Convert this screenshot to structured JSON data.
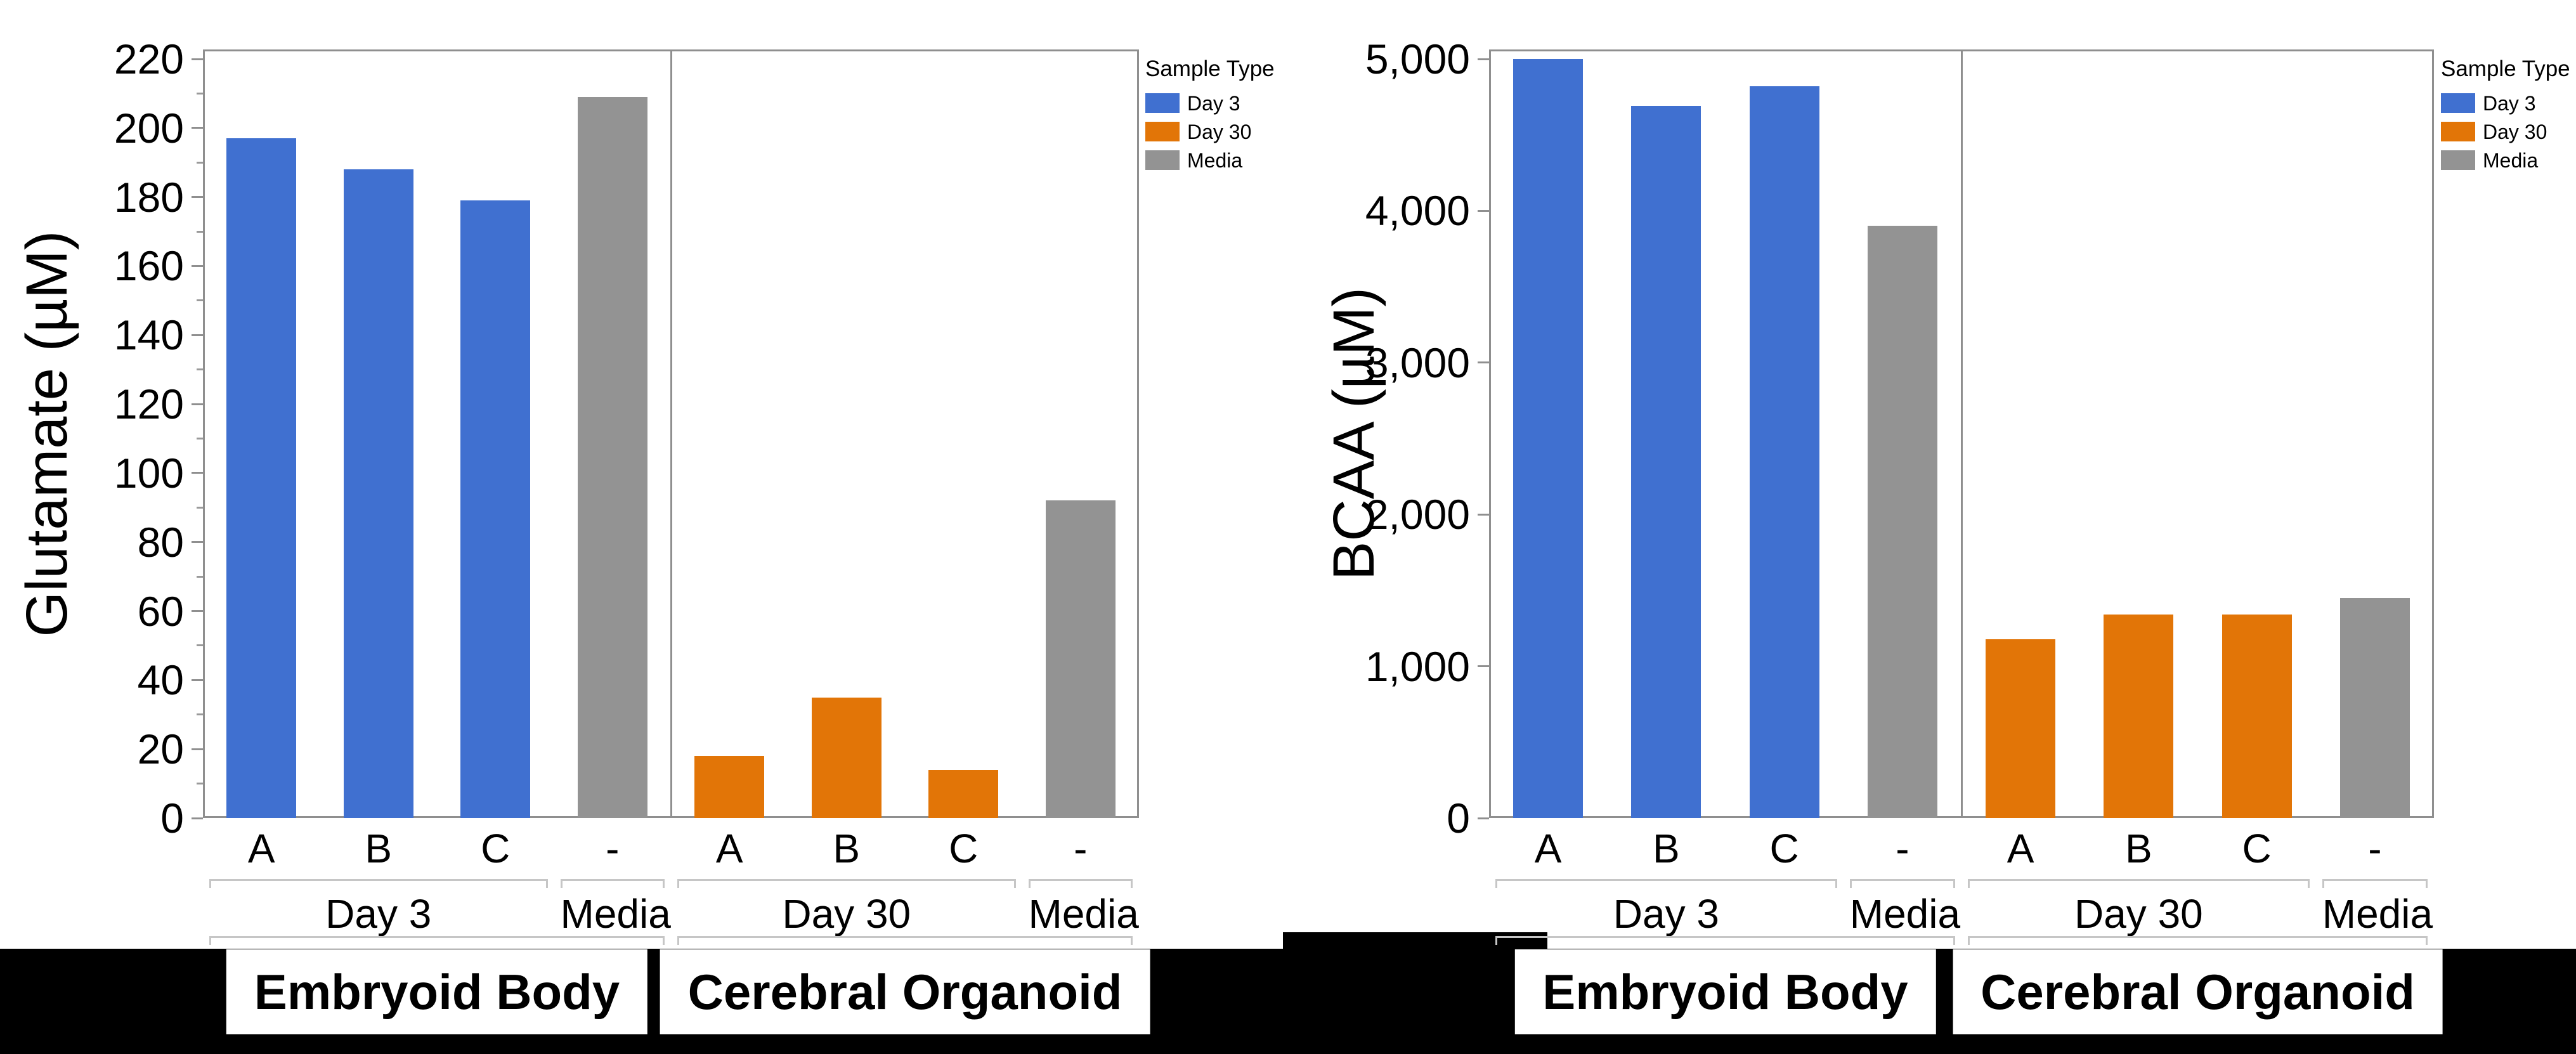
{
  "figure": {
    "background_color": "#FFFFFF",
    "footer_band_color": "#000000"
  },
  "series_colors": {
    "Day 3": "#4070D0",
    "Day 30": "#E27507",
    "Media": "#939393"
  },
  "legend": {
    "title": "Sample Type",
    "position": "right",
    "items": [
      {
        "label": "Day 3",
        "color": "#4070D0"
      },
      {
        "label": "Day 30",
        "color": "#E27507"
      },
      {
        "label": "Media",
        "color": "#939393"
      }
    ]
  },
  "chart_data": [
    {
      "type": "bar",
      "title": "",
      "xlabel": "",
      "ylabel": "Glutamate (µM)",
      "ylim": [
        0,
        220
      ],
      "ytick_step": 20,
      "yminor_step": 10,
      "ytick_format": "plain",
      "grid": false,
      "legend_position": "right",
      "categories": [
        "A",
        "B",
        "C",
        "-",
        "A",
        "B",
        "C",
        "-"
      ],
      "panels": [
        {
          "label": "Embryoid Body",
          "subgroups": [
            {
              "label": "Day 3",
              "series": "Day 3",
              "bars": [
                {
                  "tick": "A",
                  "value": 197
                },
                {
                  "tick": "B",
                  "value": 188
                },
                {
                  "tick": "C",
                  "value": 179
                }
              ]
            },
            {
              "label": "Media",
              "series": "Media",
              "bars": [
                {
                  "tick": "-",
                  "value": 209
                }
              ]
            }
          ]
        },
        {
          "label": "Cerebral Organoid",
          "subgroups": [
            {
              "label": "Day 30",
              "series": "Day 30",
              "bars": [
                {
                  "tick": "A",
                  "value": 18
                },
                {
                  "tick": "B",
                  "value": 35
                },
                {
                  "tick": "C",
                  "value": 14
                }
              ]
            },
            {
              "label": "Media",
              "series": "Media",
              "bars": [
                {
                  "tick": "-",
                  "value": 92
                }
              ]
            }
          ]
        }
      ]
    },
    {
      "type": "bar",
      "title": "",
      "xlabel": "",
      "ylabel": "BCAA (µM)",
      "ylim": [
        0,
        5000
      ],
      "ytick_step": 1000,
      "yminor_step": 0,
      "ytick_format": "comma",
      "grid": false,
      "legend_position": "right",
      "categories": [
        "A",
        "B",
        "C",
        "-",
        "A",
        "B",
        "C",
        "-"
      ],
      "panels": [
        {
          "label": "Embryoid Body",
          "subgroups": [
            {
              "label": "Day 3",
              "series": "Day 3",
              "bars": [
                {
                  "tick": "A",
                  "value": 5000
                },
                {
                  "tick": "B",
                  "value": 4690
                },
                {
                  "tick": "C",
                  "value": 4820
                }
              ]
            },
            {
              "label": "Media",
              "series": "Media",
              "bars": [
                {
                  "tick": "-",
                  "value": 3900
                }
              ]
            }
          ]
        },
        {
          "label": "Cerebral Organoid",
          "subgroups": [
            {
              "label": "Day 30",
              "series": "Day 30",
              "bars": [
                {
                  "tick": "A",
                  "value": 1180
                },
                {
                  "tick": "B",
                  "value": 1340
                },
                {
                  "tick": "C",
                  "value": 1340
                }
              ]
            },
            {
              "label": "Media",
              "series": "Media",
              "bars": [
                {
                  "tick": "-",
                  "value": 1450
                }
              ]
            }
          ]
        }
      ]
    }
  ]
}
